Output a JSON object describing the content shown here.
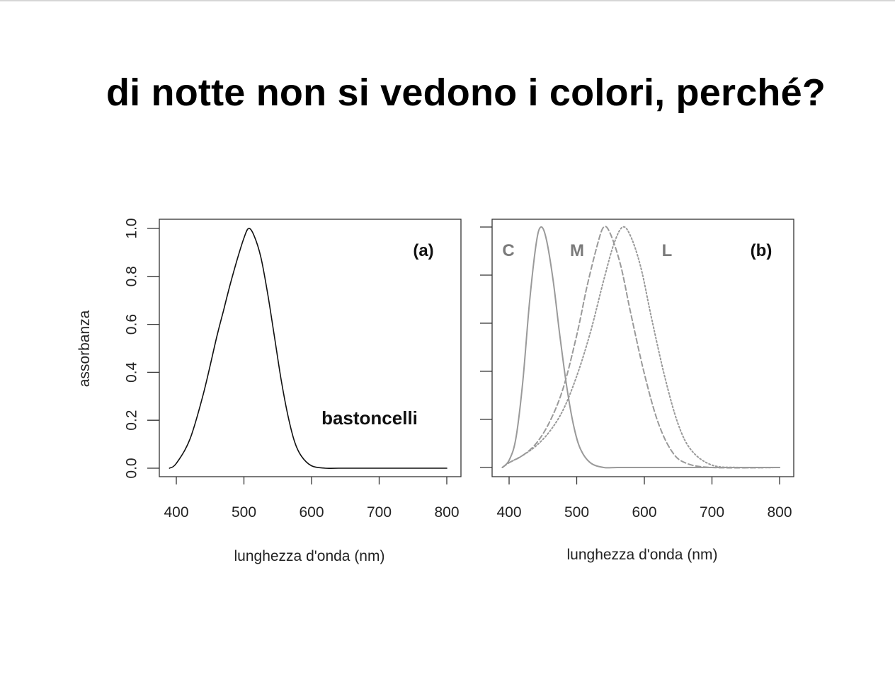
{
  "slide": {
    "title": "di notte non si vedono i colori, perché?"
  },
  "colors": {
    "curve_a": "#111111",
    "curve_b": "#9a9a9a",
    "axis": "#333333"
  },
  "chart_data": [
    {
      "type": "line",
      "panel_label": "(a)",
      "xlabel": "lunghezza d'onda (nm)",
      "ylabel": "assorbanza",
      "xlim": [
        390,
        800
      ],
      "ylim": [
        0.0,
        1.0
      ],
      "x_ticks": [
        "400",
        "500",
        "600",
        "700",
        "800"
      ],
      "y_ticks": [
        "0.0",
        "0.2",
        "0.4",
        "0.6",
        "0.8",
        "1.0"
      ],
      "annotation": "bastoncelli",
      "series": [
        {
          "style": "solid",
          "x": [
            390,
            400,
            420,
            440,
            460,
            470,
            480,
            490,
            500,
            507,
            515,
            525,
            535,
            545,
            555,
            565,
            575,
            585,
            600,
            620,
            640,
            700,
            800
          ],
          "y": [
            0.0,
            0.02,
            0.12,
            0.31,
            0.55,
            0.66,
            0.77,
            0.87,
            0.96,
            1.0,
            0.97,
            0.88,
            0.73,
            0.55,
            0.37,
            0.22,
            0.11,
            0.05,
            0.01,
            0.0,
            0.0,
            0.0,
            0.0
          ]
        }
      ]
    },
    {
      "type": "line",
      "panel_label": "(b)",
      "xlabel": "lunghezza d'onda (nm)",
      "ylabel": "",
      "xlim": [
        390,
        800
      ],
      "ylim": [
        0.0,
        1.0
      ],
      "x_ticks": [
        "400",
        "500",
        "600",
        "700",
        "800"
      ],
      "y_ticks": [],
      "series": [
        {
          "name": "C",
          "style": "solid",
          "x": [
            390,
            400,
            410,
            420,
            430,
            440,
            447,
            455,
            465,
            475,
            485,
            495,
            505,
            520,
            540,
            560,
            600,
            800
          ],
          "y": [
            0.0,
            0.03,
            0.12,
            0.35,
            0.68,
            0.93,
            1.0,
            0.95,
            0.78,
            0.55,
            0.34,
            0.18,
            0.08,
            0.02,
            0.0,
            0.0,
            0.0,
            0.0
          ]
        },
        {
          "name": "M",
          "style": "dashed",
          "x": [
            390,
            400,
            420,
            440,
            460,
            480,
            500,
            515,
            530,
            540,
            550,
            565,
            580,
            600,
            620,
            640,
            660,
            700,
            800
          ],
          "y": [
            0.0,
            0.02,
            0.05,
            0.1,
            0.19,
            0.33,
            0.55,
            0.75,
            0.92,
            1.0,
            0.97,
            0.84,
            0.64,
            0.39,
            0.19,
            0.07,
            0.02,
            0.0,
            0.0
          ]
        },
        {
          "name": "L",
          "style": "dotted",
          "x": [
            390,
            400,
            420,
            440,
            460,
            480,
            500,
            520,
            540,
            555,
            568,
            580,
            595,
            610,
            630,
            650,
            670,
            700,
            740,
            800
          ],
          "y": [
            0.0,
            0.02,
            0.05,
            0.09,
            0.15,
            0.24,
            0.38,
            0.56,
            0.78,
            0.93,
            1.0,
            0.96,
            0.83,
            0.63,
            0.38,
            0.18,
            0.07,
            0.01,
            0.0,
            0.0
          ]
        }
      ]
    }
  ]
}
